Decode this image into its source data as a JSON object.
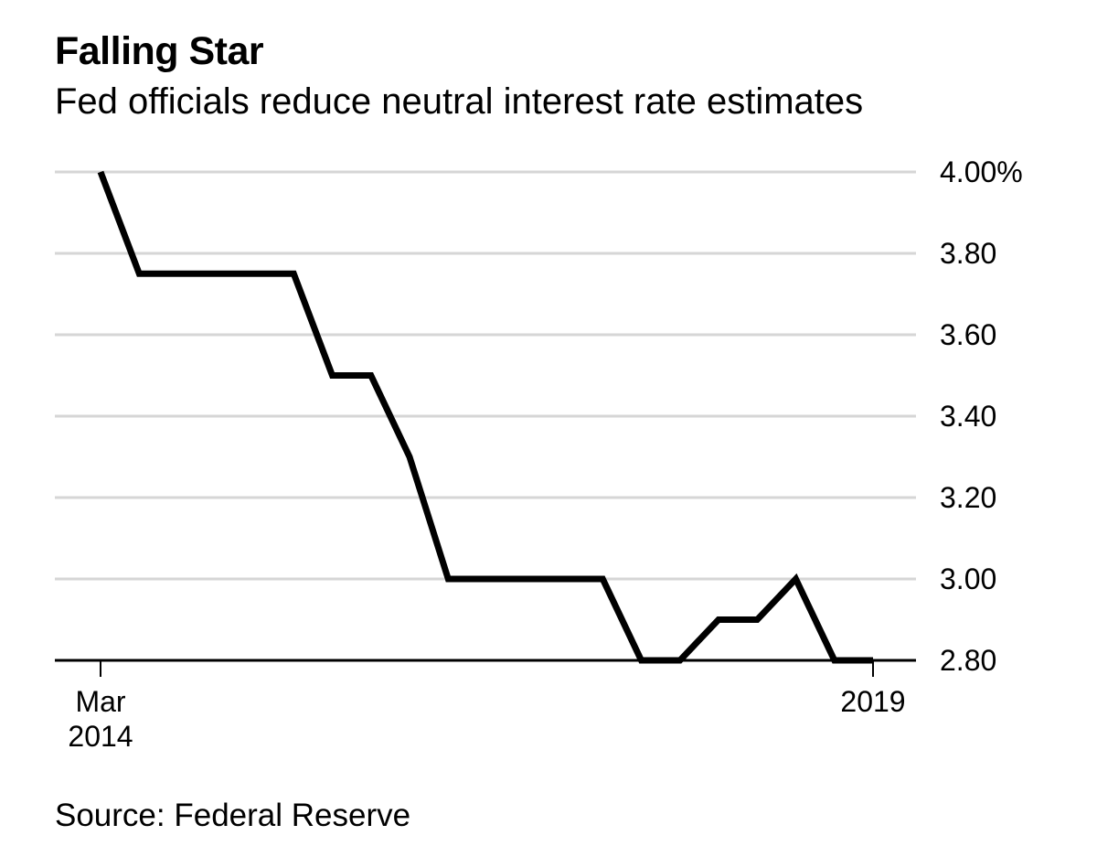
{
  "header": {
    "title": "Falling Star",
    "subtitle": "Fed officials reduce neutral interest rate estimates"
  },
  "footer": {
    "source": "Source: Federal Reserve"
  },
  "chart_data": {
    "type": "line",
    "title": "Falling Star",
    "subtitle": "Fed officials reduce neutral interest rate estimates",
    "xlabel": "",
    "ylabel": "",
    "y_unit": "%",
    "ylim": [
      2.8,
      4.0
    ],
    "yticks": [
      2.8,
      3.0,
      3.2,
      3.4,
      3.6,
      3.8,
      4.0
    ],
    "ytick_labels": [
      "2.80",
      "3.00",
      "3.20",
      "3.40",
      "3.60",
      "3.80",
      "4.00%"
    ],
    "y_axis_position": "right",
    "grid": true,
    "legend": "none",
    "x_ticks": [
      {
        "index": 0,
        "label": [
          "Mar",
          "2014"
        ]
      },
      {
        "index": 20,
        "label": [
          "2019"
        ]
      }
    ],
    "series": [
      {
        "color": "#000000",
        "values": [
          4.0,
          3.75,
          3.75,
          3.75,
          3.75,
          3.75,
          3.5,
          3.5,
          3.3,
          3.0,
          3.0,
          3.0,
          3.0,
          3.0,
          2.8,
          2.8,
          2.9,
          2.9,
          3.0,
          2.8,
          2.8
        ]
      }
    ]
  }
}
